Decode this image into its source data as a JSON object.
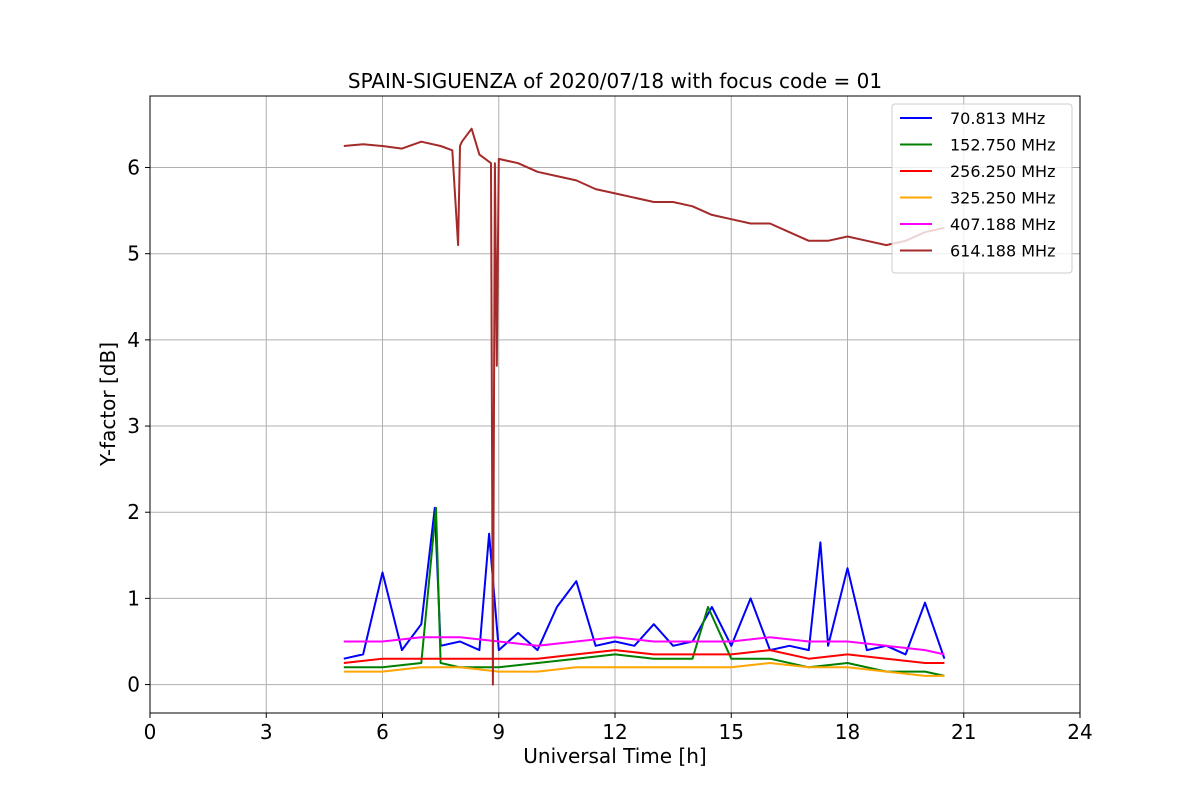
{
  "chart_data": {
    "type": "line",
    "title": "SPAIN-SIGUENZA of 2020/07/18 with focus code = 01",
    "xlabel": "Universal Time [h]",
    "ylabel": "Y-factor [dB]",
    "xlim": [
      0,
      24
    ],
    "ylim": [
      -0.33,
      6.83
    ],
    "xticks": [
      0,
      3,
      6,
      9,
      12,
      15,
      18,
      21,
      24
    ],
    "xtick_labels": [
      "0",
      "3",
      "6",
      "9",
      "12",
      "15",
      "18",
      "21",
      "24"
    ],
    "yticks": [
      0,
      1,
      2,
      3,
      4,
      5,
      6
    ],
    "ytick_labels": [
      "0",
      "1",
      "2",
      "3",
      "4",
      "5",
      "6"
    ],
    "grid": true,
    "legend_position": "top-right",
    "series": [
      {
        "name": " 70.813 MHz",
        "color": "#0000ff",
        "x": [
          5.0,
          5.5,
          6.0,
          6.5,
          7.0,
          7.35,
          7.5,
          8.0,
          8.5,
          8.75,
          9.0,
          9.5,
          10.0,
          10.5,
          11.0,
          11.5,
          12.0,
          12.5,
          13.0,
          13.5,
          14.0,
          14.5,
          15.0,
          15.5,
          16.0,
          16.5,
          17.0,
          17.3,
          17.5,
          18.0,
          18.5,
          19.0,
          19.5,
          20.0,
          20.5
        ],
        "y": [
          0.3,
          0.35,
          1.3,
          0.4,
          0.7,
          2.05,
          0.45,
          0.5,
          0.4,
          1.75,
          0.4,
          0.6,
          0.4,
          0.9,
          1.2,
          0.45,
          0.5,
          0.45,
          0.7,
          0.45,
          0.5,
          0.9,
          0.45,
          1.0,
          0.4,
          0.45,
          0.4,
          1.65,
          0.45,
          1.35,
          0.4,
          0.45,
          0.35,
          0.95,
          0.3
        ]
      },
      {
        "name": "152.750 MHz",
        "color": "#008000",
        "x": [
          5.0,
          6.0,
          7.0,
          7.38,
          7.5,
          8.0,
          9.0,
          10.0,
          11.0,
          12.0,
          13.0,
          14.0,
          14.4,
          15.0,
          16.0,
          17.0,
          18.0,
          19.0,
          20.0,
          20.5
        ],
        "y": [
          0.2,
          0.2,
          0.25,
          2.05,
          0.25,
          0.2,
          0.2,
          0.25,
          0.3,
          0.35,
          0.3,
          0.3,
          0.9,
          0.3,
          0.3,
          0.2,
          0.25,
          0.15,
          0.15,
          0.1
        ]
      },
      {
        "name": "256.250 MHz",
        "color": "#ff0000",
        "x": [
          5.0,
          6.0,
          7.0,
          8.0,
          9.0,
          10.0,
          11.0,
          12.0,
          13.0,
          14.0,
          15.0,
          16.0,
          17.0,
          18.0,
          19.0,
          20.0,
          20.5
        ],
        "y": [
          0.25,
          0.3,
          0.3,
          0.3,
          0.3,
          0.3,
          0.35,
          0.4,
          0.35,
          0.35,
          0.35,
          0.4,
          0.3,
          0.35,
          0.3,
          0.25,
          0.25
        ]
      },
      {
        "name": "325.250 MHz",
        "color": "#ffa500",
        "x": [
          5.0,
          6.0,
          7.0,
          8.0,
          9.0,
          10.0,
          11.0,
          12.0,
          13.0,
          14.0,
          15.0,
          16.0,
          17.0,
          18.0,
          19.0,
          20.0,
          20.5
        ],
        "y": [
          0.15,
          0.15,
          0.2,
          0.2,
          0.15,
          0.15,
          0.2,
          0.2,
          0.2,
          0.2,
          0.2,
          0.25,
          0.2,
          0.2,
          0.15,
          0.1,
          0.1
        ]
      },
      {
        "name": "407.188 MHz",
        "color": "#ff00ff",
        "x": [
          5.0,
          6.0,
          7.0,
          8.0,
          9.0,
          10.0,
          11.0,
          12.0,
          13.0,
          14.0,
          15.0,
          16.0,
          17.0,
          18.0,
          19.0,
          20.0,
          20.5
        ],
        "y": [
          0.5,
          0.5,
          0.55,
          0.55,
          0.5,
          0.45,
          0.5,
          0.55,
          0.5,
          0.5,
          0.5,
          0.55,
          0.5,
          0.5,
          0.45,
          0.4,
          0.35
        ]
      },
      {
        "name": "614.188 MHz",
        "color": "#a52a2a",
        "x": [
          5.0,
          5.5,
          6.0,
          6.5,
          7.0,
          7.5,
          7.8,
          7.95,
          8.0,
          8.05,
          8.3,
          8.5,
          8.8,
          8.85,
          8.9,
          8.95,
          9.0,
          9.5,
          10.0,
          10.5,
          11.0,
          11.5,
          12.0,
          12.5,
          13.0,
          13.5,
          14.0,
          14.5,
          15.0,
          15.5,
          16.0,
          16.5,
          17.0,
          17.5,
          18.0,
          18.5,
          19.0,
          19.5,
          20.0,
          20.5
        ],
        "y": [
          6.25,
          6.27,
          6.25,
          6.22,
          6.3,
          6.25,
          6.2,
          5.1,
          6.25,
          6.3,
          6.45,
          6.15,
          6.05,
          0.0,
          6.05,
          3.7,
          6.1,
          6.05,
          5.95,
          5.9,
          5.85,
          5.75,
          5.7,
          5.65,
          5.6,
          5.6,
          5.55,
          5.45,
          5.4,
          5.35,
          5.35,
          5.25,
          5.15,
          5.15,
          5.2,
          5.15,
          5.1,
          5.15,
          5.25,
          5.3
        ]
      }
    ]
  }
}
